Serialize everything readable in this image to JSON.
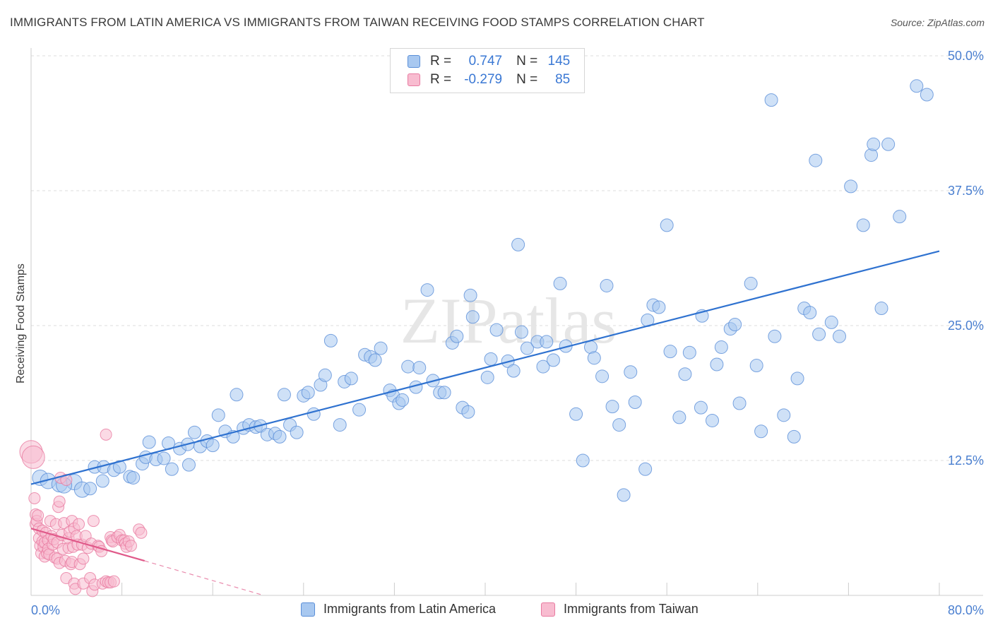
{
  "title": "IMMIGRANTS FROM LATIN AMERICA VS IMMIGRANTS FROM TAIWAN RECEIVING FOOD STAMPS CORRELATION CHART",
  "source": "Source: ZipAtlas.com",
  "watermark": "ZIPatlas",
  "legend": {
    "r_label": "R =",
    "n_label": "N =",
    "rows": [
      {
        "name": "Immigrants from Latin America",
        "r": "0.747",
        "n": "145",
        "color": "#a8c8f0",
        "stroke": "#5b8fd8"
      },
      {
        "name": "Immigrants from Taiwan",
        "r": "-0.279",
        "n": "85",
        "color": "#f8bcd0",
        "stroke": "#e87aa0"
      }
    ]
  },
  "chart_data": {
    "type": "scatter",
    "title": "IMMIGRANTS FROM LATIN AMERICA VS IMMIGRANTS FROM TAIWAN RECEIVING FOOD STAMPS CORRELATION CHART",
    "xlabel": "",
    "ylabel": "Receiving Food Stamps",
    "xlim": [
      0,
      80
    ],
    "ylim": [
      0,
      50
    ],
    "x_tick_labels": [
      "0.0%",
      "80.0%"
    ],
    "y_tick_labels": [
      "12.5%",
      "25.0%",
      "37.5%",
      "50.0%"
    ],
    "y_ticks": [
      12.5,
      25.0,
      37.5,
      50.0
    ],
    "grid": "horizontal dashed",
    "legend_position": "bottom",
    "series": [
      {
        "name": "Immigrants from Latin America",
        "color": "#a8c8f0",
        "stroke": "#5b8fd8",
        "line_color": "#2f72d0",
        "trend": {
          "x": [
            0,
            80
          ],
          "y": [
            10.3,
            31.9
          ]
        },
        "points": [
          [
            0.8,
            10.9
          ],
          [
            1.5,
            10.6
          ],
          [
            2.5,
            10.3
          ],
          [
            3.8,
            10.5
          ],
          [
            4.5,
            9.8
          ],
          [
            2.9,
            10.2
          ],
          [
            5.2,
            9.9
          ],
          [
            5.6,
            11.9
          ],
          [
            6.4,
            11.9
          ],
          [
            6.3,
            10.6
          ],
          [
            7.3,
            11.6
          ],
          [
            7.8,
            11.9
          ],
          [
            8.7,
            11.0
          ],
          [
            9.0,
            10.9
          ],
          [
            9.8,
            12.2
          ],
          [
            10.1,
            12.8
          ],
          [
            10.4,
            14.2
          ],
          [
            11.0,
            12.6
          ],
          [
            11.7,
            12.7
          ],
          [
            12.1,
            14.1
          ],
          [
            12.4,
            11.7
          ],
          [
            13.1,
            13.6
          ],
          [
            13.8,
            14.0
          ],
          [
            13.9,
            12.1
          ],
          [
            14.4,
            15.1
          ],
          [
            14.9,
            13.8
          ],
          [
            15.5,
            14.3
          ],
          [
            16.0,
            13.9
          ],
          [
            16.5,
            16.7
          ],
          [
            17.1,
            15.2
          ],
          [
            17.8,
            14.7
          ],
          [
            18.1,
            18.6
          ],
          [
            18.7,
            15.5
          ],
          [
            19.2,
            15.8
          ],
          [
            19.8,
            15.6
          ],
          [
            20.2,
            15.7
          ],
          [
            20.8,
            14.9
          ],
          [
            21.5,
            15.0
          ],
          [
            21.9,
            14.7
          ],
          [
            22.3,
            18.6
          ],
          [
            22.8,
            15.8
          ],
          [
            23.4,
            15.1
          ],
          [
            24.0,
            18.5
          ],
          [
            24.4,
            18.8
          ],
          [
            24.9,
            16.8
          ],
          [
            25.5,
            19.5
          ],
          [
            25.9,
            20.4
          ],
          [
            26.4,
            23.6
          ],
          [
            27.2,
            15.8
          ],
          [
            27.6,
            19.8
          ],
          [
            28.2,
            20.1
          ],
          [
            28.9,
            17.2
          ],
          [
            29.4,
            22.3
          ],
          [
            29.9,
            22.1
          ],
          [
            30.3,
            21.8
          ],
          [
            30.8,
            22.9
          ],
          [
            31.6,
            19.0
          ],
          [
            31.9,
            18.5
          ],
          [
            32.4,
            17.8
          ],
          [
            32.7,
            18.1
          ],
          [
            33.2,
            21.2
          ],
          [
            33.9,
            19.3
          ],
          [
            34.2,
            21.1
          ],
          [
            34.9,
            28.3
          ],
          [
            35.4,
            19.9
          ],
          [
            36.0,
            18.8
          ],
          [
            36.4,
            18.8
          ],
          [
            37.1,
            23.4
          ],
          [
            37.5,
            24.0
          ],
          [
            38.0,
            17.4
          ],
          [
            38.5,
            17.0
          ],
          [
            38.7,
            27.8
          ],
          [
            38.9,
            25.8
          ],
          [
            40.2,
            20.2
          ],
          [
            40.5,
            21.9
          ],
          [
            41.0,
            24.6
          ],
          [
            42.0,
            21.7
          ],
          [
            42.5,
            20.8
          ],
          [
            42.9,
            32.5
          ],
          [
            43.2,
            24.4
          ],
          [
            43.7,
            22.9
          ],
          [
            44.6,
            23.5
          ],
          [
            45.1,
            21.2
          ],
          [
            45.4,
            23.5
          ],
          [
            46.0,
            21.8
          ],
          [
            46.6,
            28.9
          ],
          [
            47.1,
            23.1
          ],
          [
            48.0,
            16.8
          ],
          [
            48.6,
            12.5
          ],
          [
            49.3,
            23.0
          ],
          [
            49.6,
            22.0
          ],
          [
            50.3,
            20.3
          ],
          [
            50.7,
            28.7
          ],
          [
            51.2,
            17.5
          ],
          [
            51.8,
            15.8
          ],
          [
            52.2,
            9.3
          ],
          [
            52.8,
            20.7
          ],
          [
            53.2,
            17.9
          ],
          [
            54.1,
            11.7
          ],
          [
            54.3,
            25.5
          ],
          [
            54.8,
            26.9
          ],
          [
            55.3,
            26.7
          ],
          [
            56.0,
            34.3
          ],
          [
            56.3,
            22.6
          ],
          [
            57.1,
            16.5
          ],
          [
            57.6,
            20.5
          ],
          [
            58.0,
            22.5
          ],
          [
            59.0,
            17.4
          ],
          [
            59.1,
            25.9
          ],
          [
            60.0,
            16.2
          ],
          [
            60.4,
            21.4
          ],
          [
            60.8,
            23.0
          ],
          [
            61.6,
            24.7
          ],
          [
            62.0,
            25.1
          ],
          [
            62.4,
            17.8
          ],
          [
            63.4,
            28.9
          ],
          [
            63.9,
            21.3
          ],
          [
            64.3,
            15.2
          ],
          [
            65.2,
            45.9
          ],
          [
            65.5,
            24.0
          ],
          [
            66.3,
            16.7
          ],
          [
            67.2,
            14.7
          ],
          [
            67.5,
            20.1
          ],
          [
            68.1,
            26.6
          ],
          [
            68.6,
            26.2
          ],
          [
            69.1,
            40.3
          ],
          [
            69.4,
            24.2
          ],
          [
            70.5,
            25.3
          ],
          [
            71.2,
            24.0
          ],
          [
            72.2,
            37.9
          ],
          [
            73.3,
            34.3
          ],
          [
            74.0,
            40.8
          ],
          [
            74.2,
            41.8
          ],
          [
            74.9,
            26.6
          ],
          [
            75.5,
            41.8
          ],
          [
            76.5,
            35.1
          ],
          [
            78.0,
            47.2
          ],
          [
            78.9,
            46.4
          ]
        ]
      },
      {
        "name": "Immigrants from Taiwan",
        "color": "#f8bcd0",
        "stroke": "#e87aa0",
        "line_color": "#e05a8a",
        "trend": {
          "x": [
            0,
            10.0
          ],
          "y": [
            6.2,
            3.2
          ]
        },
        "trend_dashed": {
          "x": [
            10.0,
            20.5
          ],
          "y": [
            3.2,
            0.0
          ]
        },
        "points": [
          [
            0.0,
            13.3
          ],
          [
            0.2,
            12.8
          ],
          [
            0.3,
            9.0
          ],
          [
            0.4,
            7.5
          ],
          [
            0.4,
            6.6
          ],
          [
            0.5,
            6.9
          ],
          [
            0.6,
            7.4
          ],
          [
            0.7,
            6.2
          ],
          [
            0.7,
            5.3
          ],
          [
            0.8,
            4.6
          ],
          [
            0.9,
            3.9
          ],
          [
            1.0,
            6.0
          ],
          [
            1.0,
            5.0
          ],
          [
            1.1,
            4.5
          ],
          [
            1.2,
            4.9
          ],
          [
            1.2,
            3.6
          ],
          [
            1.3,
            5.8
          ],
          [
            1.4,
            3.9
          ],
          [
            1.5,
            5.1
          ],
          [
            1.5,
            4.3
          ],
          [
            1.6,
            3.8
          ],
          [
            1.7,
            6.9
          ],
          [
            1.8,
            5.5
          ],
          [
            1.9,
            4.7
          ],
          [
            2.0,
            5.2
          ],
          [
            2.1,
            3.5
          ],
          [
            2.2,
            6.6
          ],
          [
            2.3,
            4.9
          ],
          [
            2.3,
            3.4
          ],
          [
            2.4,
            8.2
          ],
          [
            2.5,
            8.7
          ],
          [
            2.5,
            3.0
          ],
          [
            2.6,
            10.9
          ],
          [
            2.7,
            5.6
          ],
          [
            2.8,
            4.3
          ],
          [
            2.9,
            6.7
          ],
          [
            3.0,
            3.2
          ],
          [
            3.1,
            1.6
          ],
          [
            3.1,
            10.7
          ],
          [
            3.3,
            4.4
          ],
          [
            3.3,
            5.3
          ],
          [
            3.4,
            5.9
          ],
          [
            3.5,
            2.9
          ],
          [
            3.6,
            6.9
          ],
          [
            3.6,
            3.1
          ],
          [
            3.7,
            4.5
          ],
          [
            3.8,
            6.2
          ],
          [
            3.8,
            1.1
          ],
          [
            3.9,
            0.6
          ],
          [
            4.0,
            5.5
          ],
          [
            4.1,
            4.7
          ],
          [
            4.2,
            6.6
          ],
          [
            4.3,
            2.9
          ],
          [
            4.5,
            4.7
          ],
          [
            4.6,
            1.1
          ],
          [
            4.6,
            3.4
          ],
          [
            4.8,
            5.5
          ],
          [
            5.0,
            4.4
          ],
          [
            5.2,
            1.6
          ],
          [
            5.3,
            4.8
          ],
          [
            5.4,
            0.4
          ],
          [
            5.5,
            6.9
          ],
          [
            5.6,
            1.0
          ],
          [
            5.9,
            4.6
          ],
          [
            6.0,
            4.5
          ],
          [
            6.2,
            4.1
          ],
          [
            6.3,
            1.1
          ],
          [
            6.6,
            1.3
          ],
          [
            6.8,
            1.2
          ],
          [
            7.0,
            5.4
          ],
          [
            7.0,
            1.2
          ],
          [
            7.1,
            5.1
          ],
          [
            7.2,
            5.0
          ],
          [
            7.3,
            1.3
          ],
          [
            7.6,
            5.4
          ],
          [
            7.8,
            5.6
          ],
          [
            8.0,
            5.1
          ],
          [
            8.2,
            5.1
          ],
          [
            8.3,
            4.8
          ],
          [
            8.4,
            4.5
          ],
          [
            8.6,
            5.0
          ],
          [
            8.8,
            4.6
          ],
          [
            9.5,
            6.1
          ],
          [
            9.7,
            5.8
          ],
          [
            6.6,
            14.9
          ]
        ]
      }
    ]
  }
}
